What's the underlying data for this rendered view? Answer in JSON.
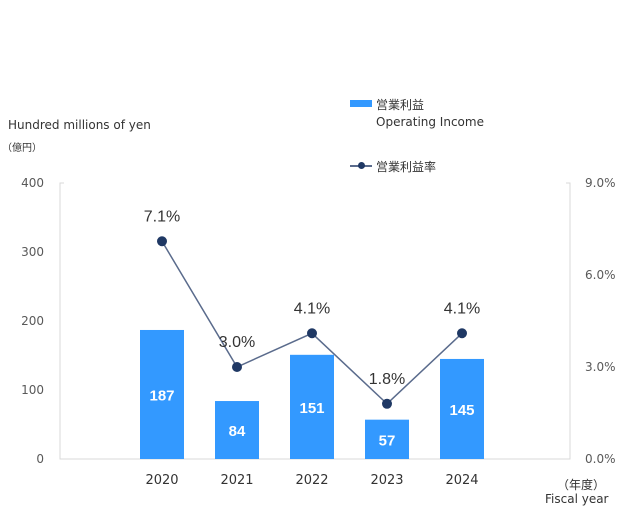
{
  "chart_data": {
    "type": "bar+line",
    "categories": [
      "2020",
      "2021",
      "2022",
      "2023",
      "2024"
    ],
    "series": [
      {
        "name": "営業利益",
        "name_en": "Operating Income",
        "type": "bar",
        "axis": "left",
        "values": [
          187,
          84,
          151,
          57,
          145
        ],
        "labels": [
          "187",
          "84",
          "151",
          "57",
          "145"
        ],
        "color": "#3399ff"
      },
      {
        "name": "営業利益率",
        "type": "line",
        "axis": "right",
        "values": [
          7.1,
          3.0,
          4.1,
          1.8,
          4.1
        ],
        "labels": [
          "7.1%",
          "3.0%",
          "4.1%",
          "1.8%",
          "4.1%"
        ],
        "color": "#5a6b8c",
        "marker_color": "#1f3864"
      }
    ],
    "left_axis": {
      "label_en": "Hundred millions of yen",
      "label_jp": "（億円）",
      "range": [
        0,
        400
      ],
      "ticks": [
        "0",
        "100",
        "200",
        "300",
        "400"
      ]
    },
    "right_axis": {
      "range": [
        0,
        9
      ],
      "ticks": [
        "0.0%",
        "3.0%",
        "6.0%",
        "9.0%"
      ]
    },
    "x_axis": {
      "label_jp": "（年度）",
      "label_en": "Fiscal year"
    },
    "grid": false,
    "legend_placement": "top-right"
  }
}
